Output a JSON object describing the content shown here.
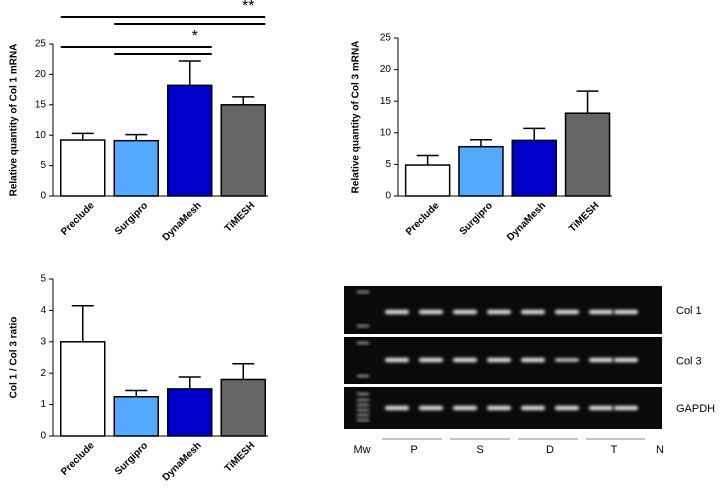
{
  "chart_data": [
    {
      "type": "bar",
      "ylabel": "Relative quantity of Col 1 mRNA",
      "categories": [
        "Preclude",
        "Surgipro",
        "DynaMesh",
        "TiMESH"
      ],
      "values": [
        9.2,
        9.1,
        18.2,
        15.0
      ],
      "errors": [
        1.1,
        1.0,
        4.0,
        1.3
      ],
      "colors": [
        "#ffffff",
        "#55aaff",
        "#0000cc",
        "#666666"
      ],
      "ylim": [
        0,
        25
      ],
      "yticks": [
        0,
        5,
        10,
        15,
        20,
        25
      ],
      "annotations": [
        "**",
        "*"
      ]
    },
    {
      "type": "bar",
      "ylabel": "Relative quantity of Col 3 mRNA",
      "categories": [
        "Preclude",
        "Surgipro",
        "DynaMesh",
        "TiMESH"
      ],
      "values": [
        4.9,
        7.8,
        8.8,
        13.1
      ],
      "errors": [
        1.5,
        1.1,
        1.9,
        3.5
      ],
      "colors": [
        "#ffffff",
        "#55aaff",
        "#0000cc",
        "#666666"
      ],
      "ylim": [
        0,
        25
      ],
      "yticks": [
        0,
        5,
        10,
        15,
        20,
        25
      ]
    },
    {
      "type": "bar",
      "ylabel": "Col 1 / Col 3 ratio",
      "categories": [
        "Preclude",
        "Surgipro",
        "DynaMesh",
        "TiMESH"
      ],
      "values": [
        3.0,
        1.25,
        1.5,
        1.8
      ],
      "errors": [
        1.15,
        0.2,
        0.38,
        0.5
      ],
      "colors": [
        "#ffffff",
        "#55aaff",
        "#0000cc",
        "#666666"
      ],
      "ylim": [
        0,
        5
      ],
      "yticks": [
        0,
        1,
        2,
        3,
        4,
        5
      ]
    }
  ],
  "gel": {
    "rows": [
      "Col 1",
      "Col 3",
      "GAPDH"
    ],
    "lanes": [
      "Mw",
      "P",
      "S",
      "D",
      "T",
      "N"
    ]
  }
}
